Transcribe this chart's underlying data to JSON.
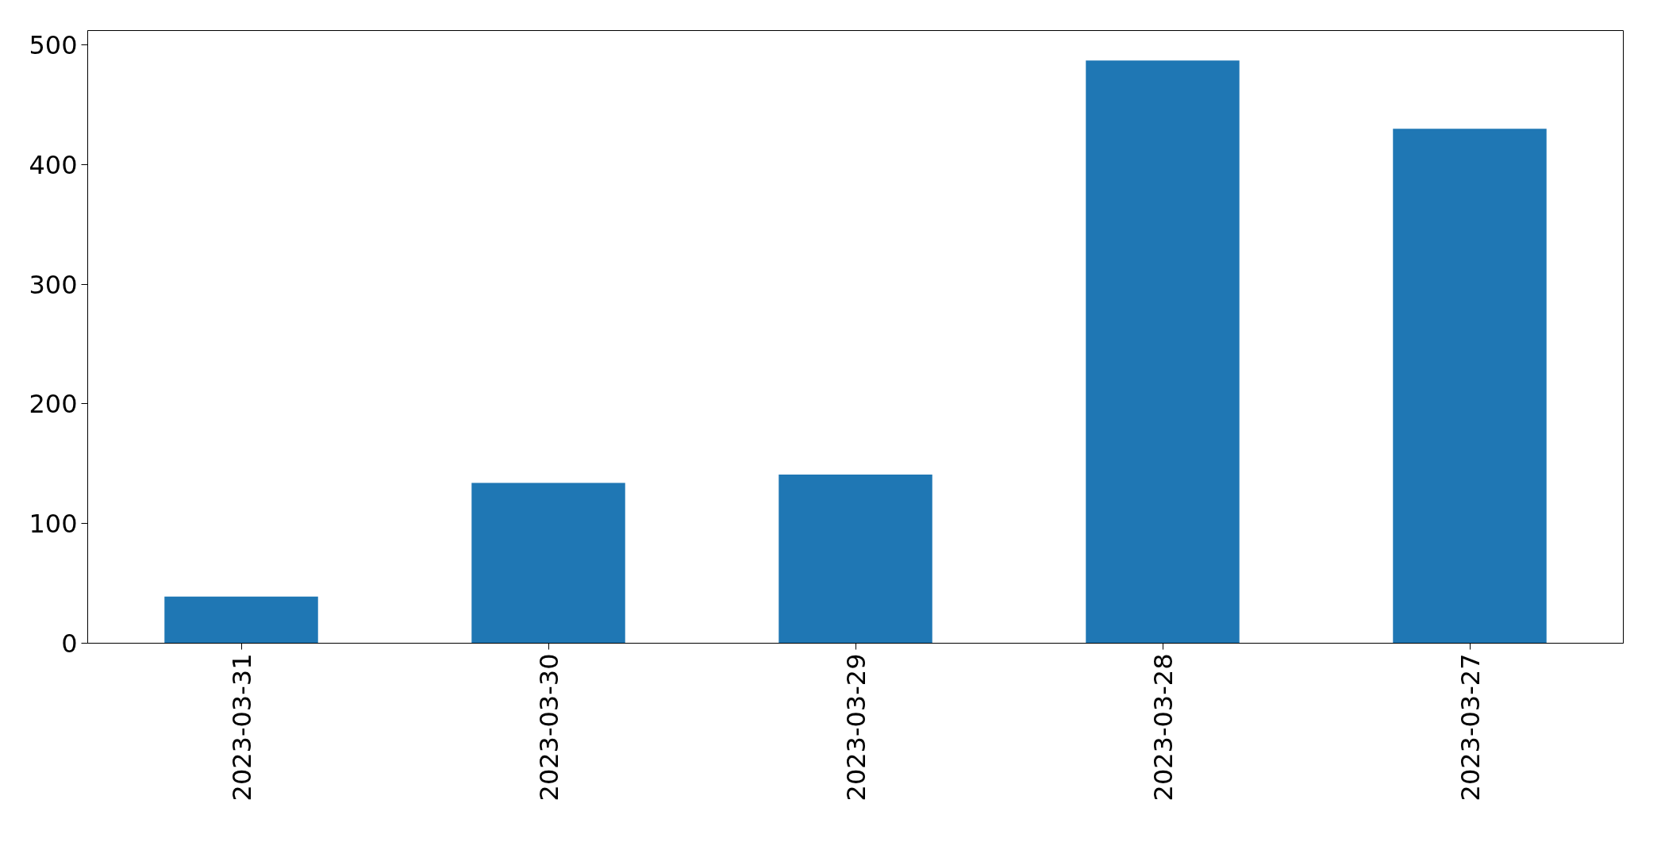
{
  "chart_data": {
    "type": "bar",
    "categories": [
      "2023-03-31",
      "2023-03-30",
      "2023-03-29",
      "2023-03-28",
      "2023-03-27"
    ],
    "values": [
      39,
      134,
      141,
      487,
      430
    ],
    "color": "#1f77b4",
    "ylim": [
      0,
      512
    ],
    "yticks": [
      0,
      100,
      200,
      300,
      400,
      500
    ],
    "grid": false
  }
}
